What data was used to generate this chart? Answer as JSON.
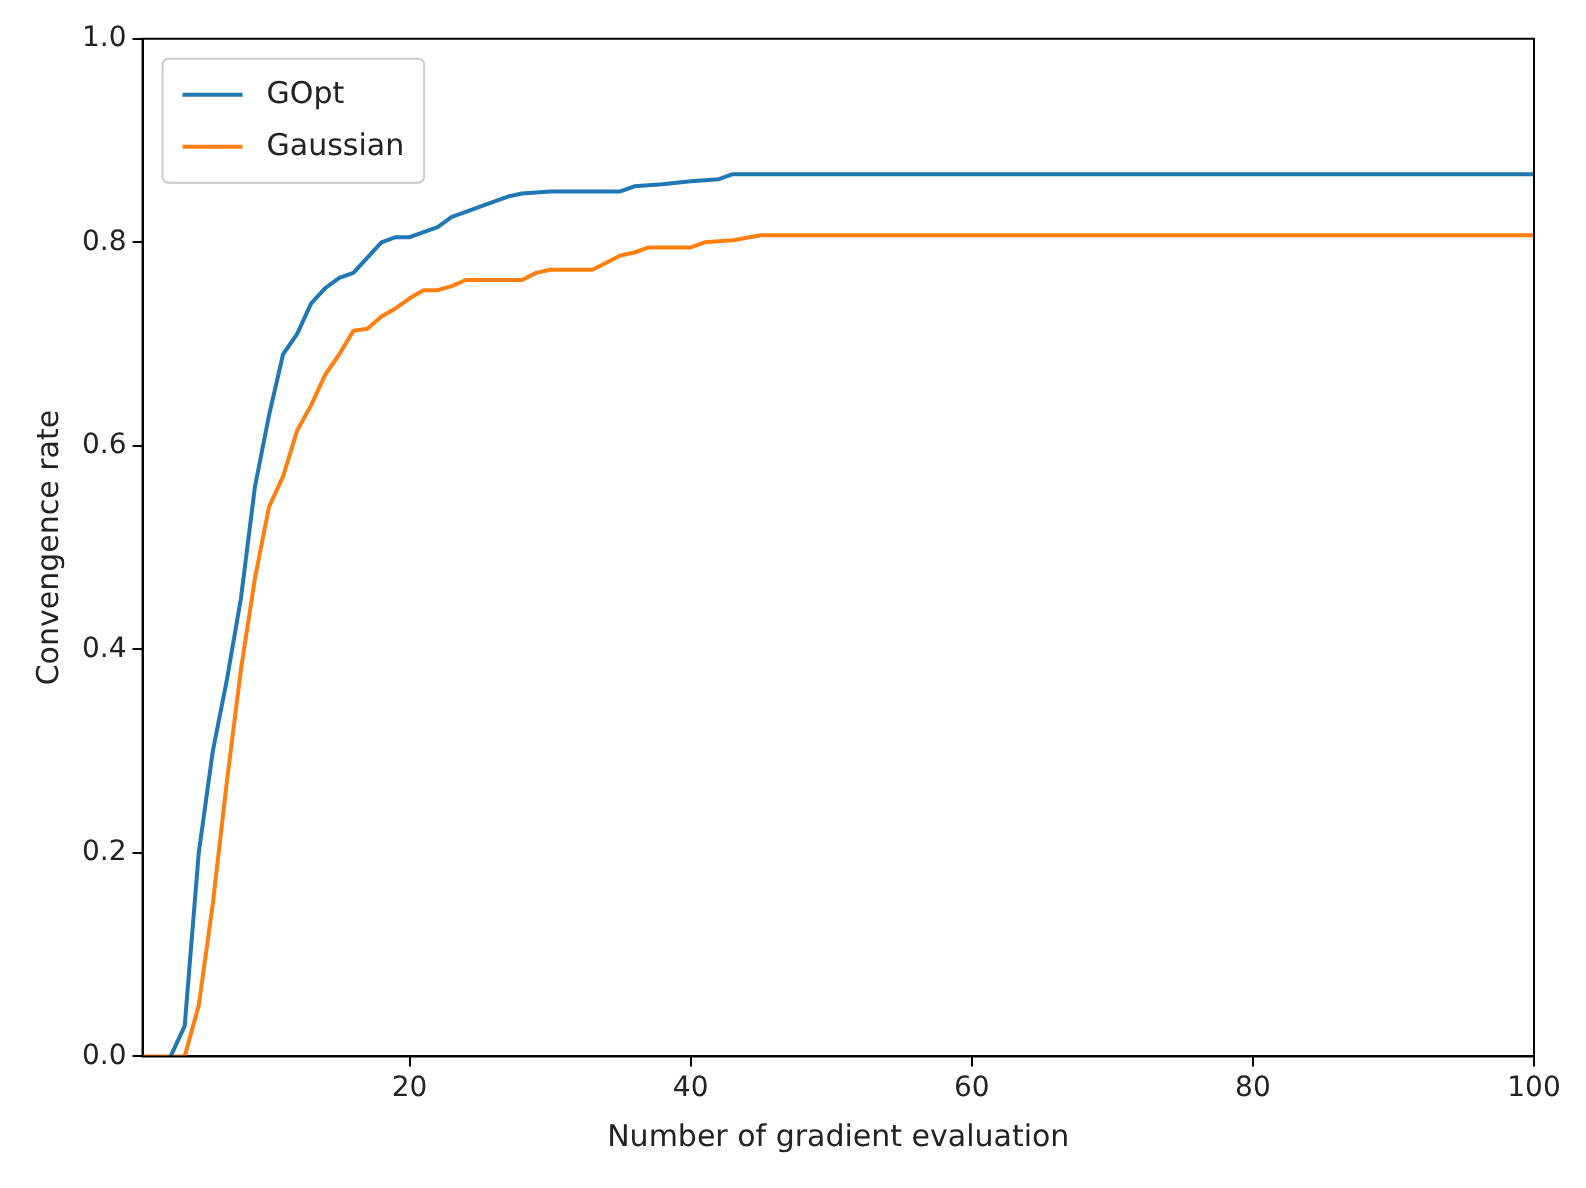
{
  "chart_data": {
    "type": "line",
    "xlabel": "Number of gradient evaluation",
    "ylabel": "Convengence rate",
    "xlim": [
      1,
      100
    ],
    "xticks": [
      20,
      40,
      60,
      80,
      100
    ],
    "ylim": [
      0,
      1
    ],
    "yticks": [
      {
        "value": 0,
        "label": "0.0"
      },
      {
        "value": 0.2,
        "label": "0.2"
      },
      {
        "value": 0.4,
        "label": "0.4"
      },
      {
        "value": 0.6,
        "label": "0.6"
      },
      {
        "value": 0.8,
        "label": "0.8"
      },
      {
        "value": 1,
        "label": "1.0"
      }
    ],
    "grid": false,
    "legend": "top left",
    "marker": "none",
    "line_style": "solid",
    "series": [
      {
        "name": "GOpt",
        "color": "#1f77b4",
        "x": [
          3,
          4,
          5,
          6,
          7,
          8,
          9,
          10,
          11,
          12,
          13,
          14,
          15,
          16,
          17,
          18,
          19,
          20,
          21,
          22,
          23,
          24,
          26,
          27,
          28,
          30,
          35,
          36,
          38,
          40,
          42,
          43,
          100
        ],
        "values": [
          0,
          0.03,
          0.2,
          0.3,
          0.37,
          0.45,
          0.56,
          0.63,
          0.69,
          0.71,
          0.74,
          0.755,
          0.765,
          0.77,
          0.785,
          0.8,
          0.805,
          0.805,
          0.81,
          0.815,
          0.825,
          0.83,
          0.84,
          0.845,
          0.848,
          0.85,
          0.85,
          0.855,
          0.857,
          0.86,
          0.862,
          0.867,
          0.867
        ]
      },
      {
        "name": "Gaussian",
        "color": "#ff7f0e",
        "x": [
          1,
          4,
          5,
          6,
          7,
          8,
          9,
          10,
          11,
          12,
          13,
          14,
          15,
          16,
          17,
          18,
          19,
          20,
          21,
          22,
          23,
          24,
          28,
          29,
          30,
          33,
          34,
          35,
          36,
          37,
          40,
          41,
          43,
          45,
          100
        ],
        "values": [
          0,
          0,
          0.05,
          0.15,
          0.27,
          0.38,
          0.47,
          0.54,
          0.57,
          0.615,
          0.64,
          0.67,
          0.69,
          0.713,
          0.715,
          0.727,
          0.735,
          0.745,
          0.753,
          0.753,
          0.757,
          0.763,
          0.763,
          0.77,
          0.773,
          0.773,
          0.78,
          0.787,
          0.79,
          0.795,
          0.795,
          0.8,
          0.802,
          0.807,
          0.807
        ]
      }
    ]
  }
}
